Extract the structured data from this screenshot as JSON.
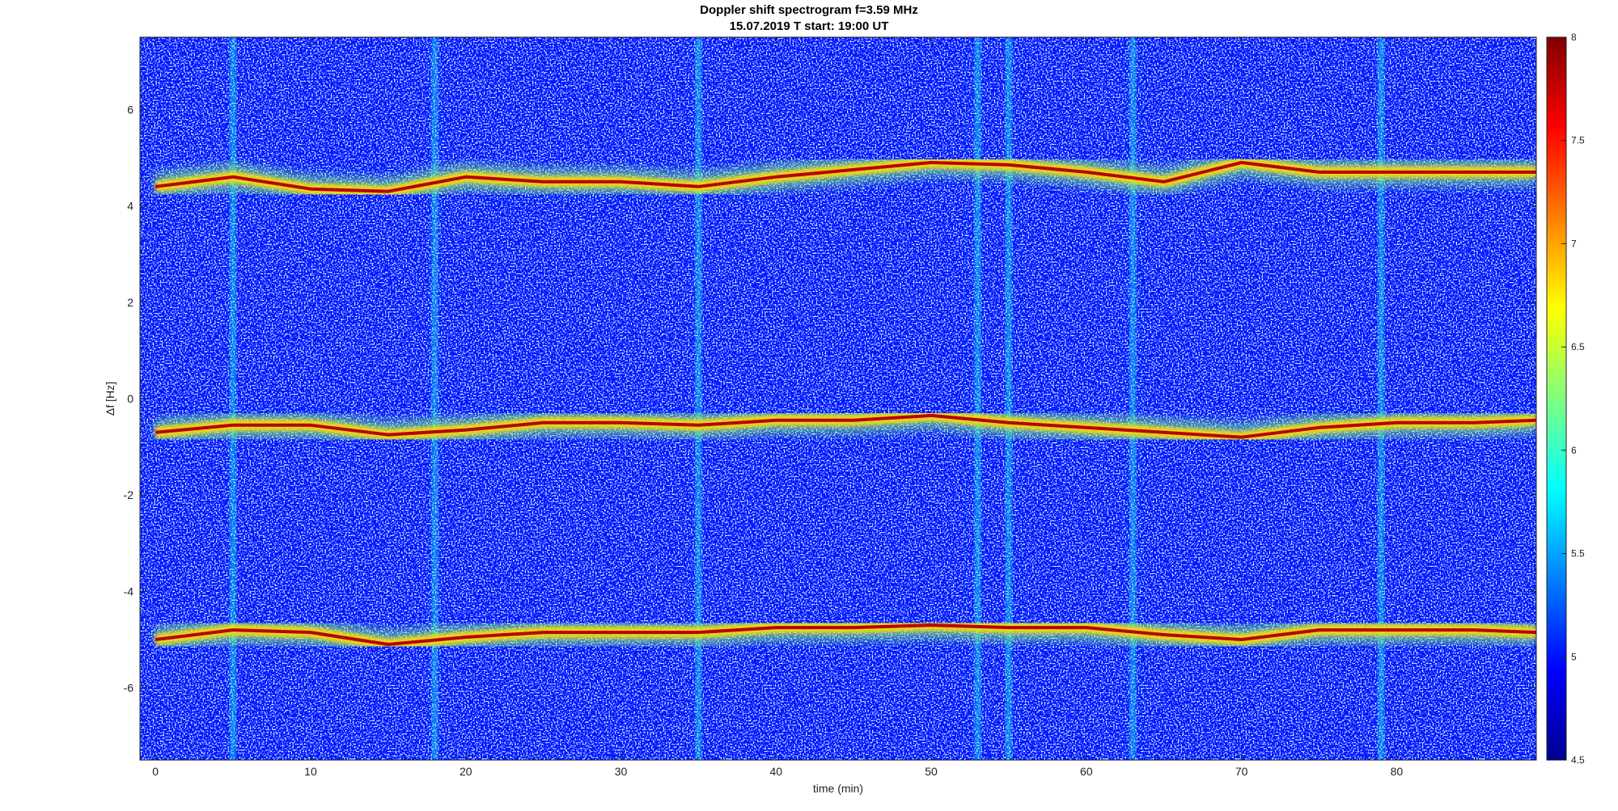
{
  "figure": {
    "title": "Doppler shift spectrogram f=3.59 MHz",
    "subtitle": "15.07.2019   T start: 19:00 UT"
  },
  "chart_data": {
    "type": "heatmap",
    "title": "Doppler shift spectrogram f=3.59 MHz",
    "subtitle": "15.07.2019   T start: 19:00 UT",
    "xlabel": "time (min)",
    "ylabel": "Δf [Hz]",
    "xlim": [
      -1,
      89
    ],
    "ylim": [
      -7.5,
      7.5
    ],
    "x_ticks": [
      0,
      10,
      20,
      30,
      40,
      50,
      60,
      70,
      80
    ],
    "y_ticks": [
      6,
      4,
      2,
      0,
      -2,
      -4,
      -6
    ],
    "colormap": "jet",
    "colorbar": {
      "range": [
        4.5,
        8
      ],
      "ticks": [
        8,
        7.5,
        7,
        6.5,
        6,
        5.5,
        5,
        4.5
      ],
      "placement": "right"
    },
    "grid": false,
    "background_level": 5.0,
    "ridge_peak_level": 7.8,
    "series": [
      {
        "name": "upper trace",
        "x": [
          0,
          5,
          10,
          15,
          20,
          25,
          30,
          35,
          40,
          45,
          50,
          55,
          60,
          65,
          70,
          75,
          80,
          85,
          89
        ],
        "values": [
          4.4,
          4.6,
          4.35,
          4.3,
          4.6,
          4.5,
          4.5,
          4.4,
          4.6,
          4.75,
          4.9,
          4.85,
          4.7,
          4.5,
          4.9,
          4.7,
          4.7,
          4.7,
          4.7
        ]
      },
      {
        "name": "middle trace",
        "x": [
          0,
          5,
          10,
          15,
          20,
          25,
          30,
          35,
          40,
          45,
          50,
          55,
          60,
          65,
          70,
          75,
          80,
          85,
          89
        ],
        "values": [
          -0.7,
          -0.55,
          -0.55,
          -0.75,
          -0.65,
          -0.5,
          -0.5,
          -0.55,
          -0.45,
          -0.45,
          -0.35,
          -0.5,
          -0.6,
          -0.7,
          -0.8,
          -0.6,
          -0.5,
          -0.5,
          -0.45
        ]
      },
      {
        "name": "lower trace",
        "x": [
          0,
          5,
          10,
          15,
          20,
          25,
          30,
          35,
          40,
          45,
          50,
          55,
          60,
          65,
          70,
          75,
          80,
          85,
          89
        ],
        "values": [
          -5.0,
          -4.8,
          -4.85,
          -5.1,
          -4.95,
          -4.85,
          -4.85,
          -4.85,
          -4.75,
          -4.75,
          -4.7,
          -4.75,
          -4.75,
          -4.9,
          -5.0,
          -4.8,
          -4.8,
          -4.8,
          -4.85
        ]
      }
    ],
    "bright_vertical_stripes_min": [
      5,
      18,
      35,
      53,
      55,
      63,
      79
    ]
  }
}
